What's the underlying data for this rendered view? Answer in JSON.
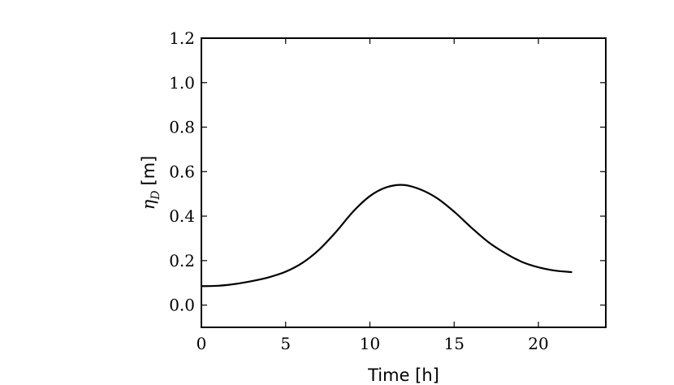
{
  "chart_data": {
    "type": "line",
    "title": "",
    "xlabel": "Time [h]",
    "ylabel_symbol": "η",
    "ylabel_subscript": "D",
    "ylabel_unit": "[m]",
    "xlim": [
      0,
      24
    ],
    "ylim": [
      -0.1,
      1.2
    ],
    "x_ticks": [
      0,
      5,
      10,
      15,
      20
    ],
    "y_ticks": [
      0.0,
      0.2,
      0.4,
      0.6,
      0.8,
      1.0,
      1.2
    ],
    "x_tick_labels": [
      "0",
      "5",
      "10",
      "15",
      "20"
    ],
    "y_tick_labels": [
      "0.0",
      "0.2",
      "0.4",
      "0.6",
      "0.8",
      "1.0",
      "1.2"
    ],
    "grid": false,
    "legend": "none",
    "series": [
      {
        "color": "#000000",
        "x": [
          0,
          1,
          2,
          3,
          4,
          5,
          6,
          7,
          8,
          9,
          10,
          11,
          12,
          13,
          14,
          15,
          16,
          17,
          18,
          19,
          20,
          21,
          22
        ],
        "y": [
          0.085,
          0.087,
          0.095,
          0.108,
          0.125,
          0.15,
          0.19,
          0.25,
          0.33,
          0.42,
          0.49,
          0.53,
          0.54,
          0.52,
          0.48,
          0.42,
          0.35,
          0.285,
          0.235,
          0.195,
          0.17,
          0.155,
          0.148
        ]
      }
    ]
  }
}
